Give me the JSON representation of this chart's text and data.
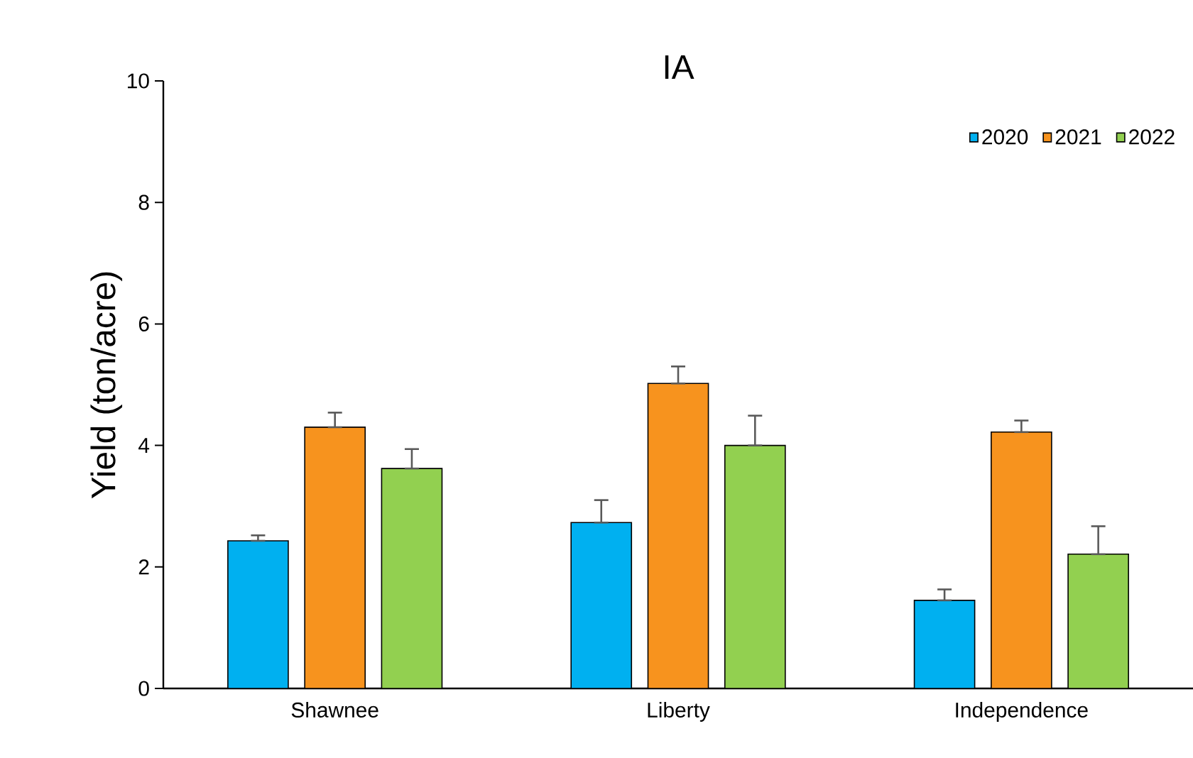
{
  "chart_data": {
    "type": "bar",
    "title": "IA",
    "ylabel": "Yield (ton/acre)",
    "categories": [
      "Shawnee",
      "Liberty",
      "Independence"
    ],
    "series": [
      {
        "name": "2020",
        "color": "#00b0f0",
        "values": [
          2.43,
          2.73,
          1.45
        ],
        "errors": [
          [
            2.43,
            2.52
          ],
          [
            2.73,
            3.1
          ],
          [
            1.45,
            1.63
          ]
        ]
      },
      {
        "name": "2021",
        "color": "#f7931e",
        "values": [
          4.3,
          5.02,
          4.22
        ],
        "errors": [
          [
            4.3,
            4.54
          ],
          [
            5.02,
            5.3
          ],
          [
            4.22,
            4.41
          ]
        ]
      },
      {
        "name": "2022",
        "color": "#92d050",
        "values": [
          3.62,
          4.0,
          2.21
        ],
        "errors": [
          [
            3.62,
            3.94
          ],
          [
            4.0,
            4.49
          ],
          [
            2.21,
            2.67
          ]
        ]
      }
    ],
    "ylim": [
      0,
      10
    ],
    "yticks": [
      0,
      2,
      4,
      6,
      8,
      10
    ],
    "grid": false,
    "legend": "top right"
  }
}
